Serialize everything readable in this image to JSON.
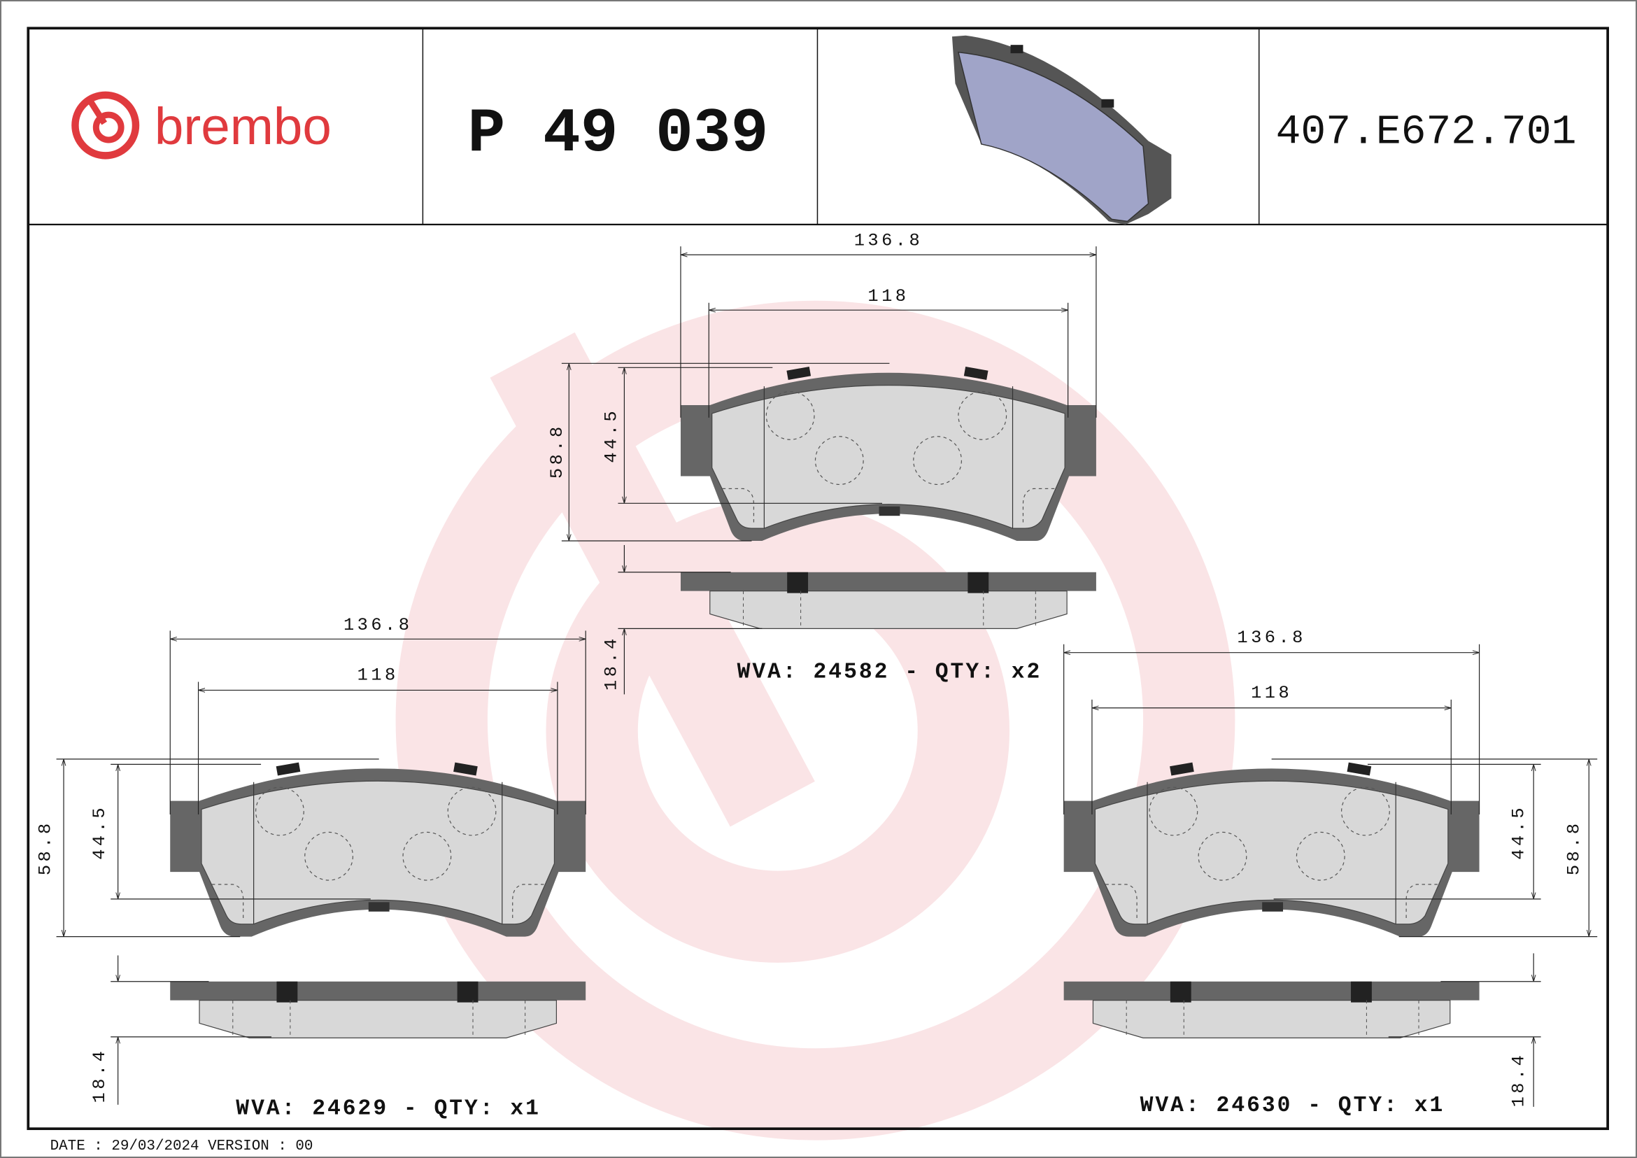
{
  "header": {
    "brand": "brembo",
    "part_number": "P 49 039",
    "reference": "407.E672.701",
    "brand_color": "#e03a3e"
  },
  "views": {
    "top": {
      "width_total": "136.8",
      "width_inner": "118",
      "height_total": "58.8",
      "height_inner": "44.5",
      "thickness": "18.4",
      "caption": "WVA: 24582 - QTY: x2"
    },
    "left": {
      "width_total": "136.8",
      "width_inner": "118",
      "height_total": "58.8",
      "height_inner": "44.5",
      "thickness": "18.4",
      "caption": "WVA: 24629 - QTY: x1"
    },
    "right": {
      "width_total": "136.8",
      "width_inner": "118",
      "height_total": "58.8",
      "height_inner": "44.5",
      "thickness": "18.4",
      "caption": "WVA: 24630 - QTY: x1"
    }
  },
  "footer": {
    "date_version": "DATE : 29/03/2024 VERSION : 00"
  },
  "colors": {
    "backing_plate": "#666666",
    "friction": "#d8d8d8",
    "watermark": "#f4c4c8"
  }
}
